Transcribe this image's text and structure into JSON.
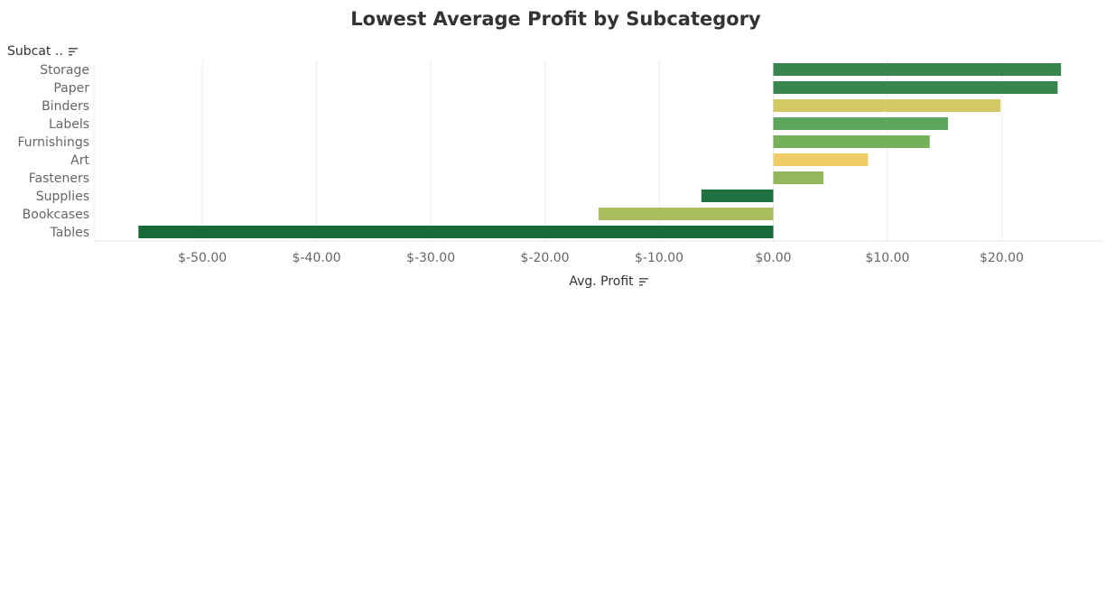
{
  "chart_data": {
    "type": "bar",
    "orientation": "horizontal",
    "title": "Lowest Average Profit by Subcategory",
    "row_header": "Subcat ..",
    "xlabel": "Avg. Profit",
    "categories": [
      "Storage",
      "Paper",
      "Binders",
      "Labels",
      "Furnishings",
      "Art",
      "Fasteners",
      "Supplies",
      "Bookcases",
      "Tables"
    ],
    "values": [
      25.2,
      24.9,
      19.9,
      15.3,
      13.7,
      8.3,
      4.4,
      -6.3,
      -15.3,
      -55.6
    ],
    "bar_colors": [
      "#38864d",
      "#38864d",
      "#d3c862",
      "#5ca55c",
      "#75b05a",
      "#f0cc66",
      "#93b85c",
      "#1f7240",
      "#a9bd5e",
      "#176a38"
    ],
    "x_ticks": [
      "$-50.00",
      "$-40.00",
      "$-30.00",
      "$-20.00",
      "$-10.00",
      "$0.00",
      "$10.00",
      "$20.00"
    ],
    "x_tick_values": [
      -50,
      -40,
      -30,
      -20,
      -10,
      0,
      10,
      20
    ],
    "xlim": [
      -59.5,
      28.9
    ],
    "grid": true,
    "sort_icon": "sort-descending-icon"
  }
}
